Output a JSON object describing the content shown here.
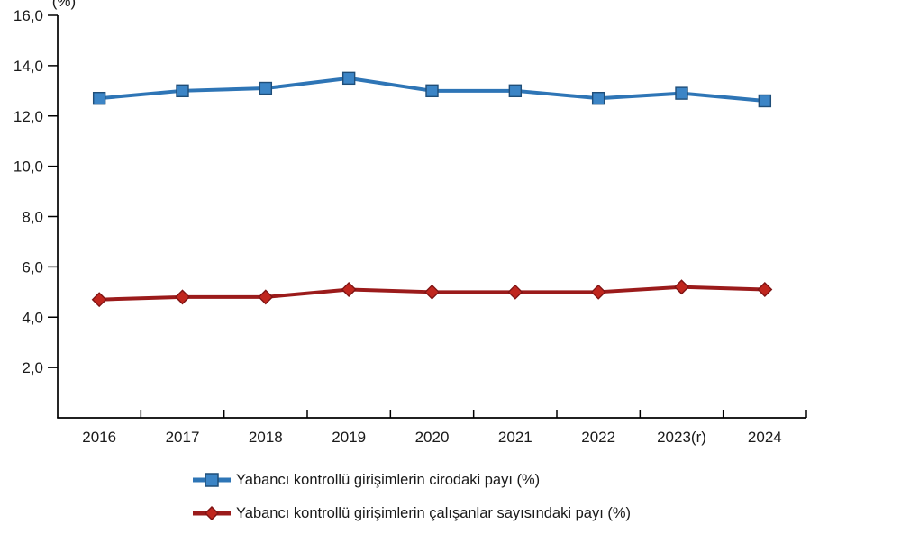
{
  "unit_label": "(%)",
  "chart_data": {
    "type": "line",
    "title": "",
    "categories": [
      "2016",
      "2017",
      "2018",
      "2019",
      "2020",
      "2021",
      "2022",
      "2023(r)",
      "2024"
    ],
    "series": [
      {
        "name": "Yabancı kontrollü girişimlerin cirodaki payı (%)",
        "values": [
          12.7,
          13.0,
          13.1,
          13.5,
          13.0,
          13.0,
          12.7,
          12.9,
          12.6
        ],
        "marker": "square",
        "line_color": "#2E75B6",
        "marker_fill": "#3C85C6",
        "marker_stroke": "#1F4E79"
      },
      {
        "name": "Yabancı kontrollü girişimlerin çalışanlar sayısındaki payı (%)",
        "values": [
          4.7,
          4.8,
          4.8,
          5.1,
          5.0,
          5.0,
          5.0,
          5.2,
          5.1
        ],
        "marker": "diamond",
        "line_color": "#9B1B1B",
        "marker_fill": "#C0261E",
        "marker_stroke": "#7F1414"
      }
    ],
    "ylim": [
      0,
      16
    ],
    "y_ticks": [
      {
        "value": 2,
        "label": "2,0"
      },
      {
        "value": 4,
        "label": "4,0"
      },
      {
        "value": 6,
        "label": "6,0"
      },
      {
        "value": 8,
        "label": "8,0"
      },
      {
        "value": 10,
        "label": "10,0"
      },
      {
        "value": 12,
        "label": "12,0"
      },
      {
        "value": 14,
        "label": "14,0"
      },
      {
        "value": 16,
        "label": "16,0"
      }
    ],
    "grid": false,
    "legend_position": "bottom-left",
    "axis_color": "#000000",
    "text_color": "#1a1a1a"
  }
}
